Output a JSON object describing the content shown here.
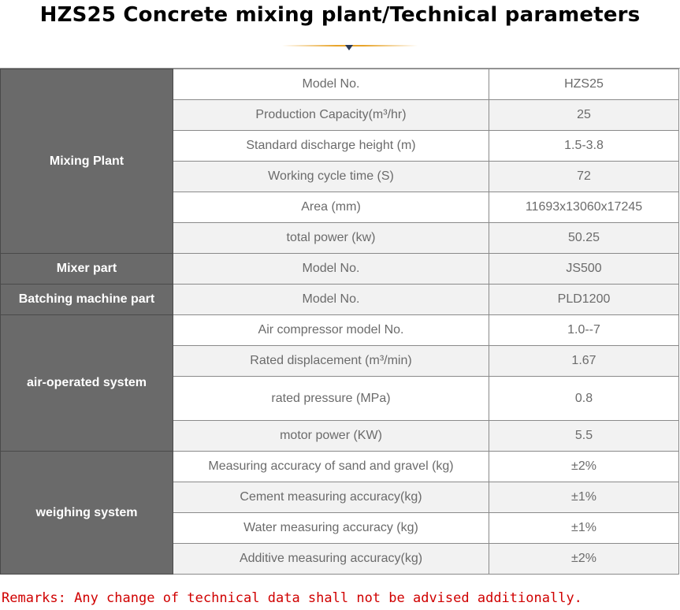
{
  "title": "HZS25 Concrete mixing plant/Technical parameters",
  "table": {
    "groups": [
      {
        "name": "Mixing Plant",
        "rows": [
          {
            "param": "Model No.",
            "value": "HZS25"
          },
          {
            "param": "Production Capacity(m³/hr)",
            "value": "25"
          },
          {
            "param": "Standard discharge height (m)",
            "value": "1.5-3.8"
          },
          {
            "param": "Working cycle time (S)",
            "value": "72"
          },
          {
            "param": "Area  (mm)",
            "value": "11693x13060x17245"
          },
          {
            "param": "total power  (kw)",
            "value": "50.25"
          }
        ]
      },
      {
        "name": "Mixer part",
        "rows": [
          {
            "param": "Model No.",
            "value": "JS500"
          }
        ]
      },
      {
        "name": "Batching machine part",
        "rows": [
          {
            "param": "Model No.",
            "value": "PLD1200"
          }
        ]
      },
      {
        "name": "air-operated system",
        "rows": [
          {
            "param": "Air compressor model No.",
            "value": "1.0--7"
          },
          {
            "param": "Rated displacement  (m³/min)",
            "value": "1.67"
          },
          {
            "param": "rated pressure  (MPa)",
            "value": "0.8"
          },
          {
            "param": "motor power  (KW)",
            "value": "5.5"
          }
        ]
      },
      {
        "name": "weighing system",
        "rows": [
          {
            "param": "Measuring accuracy of sand and gravel (kg)",
            "value": "±2%"
          },
          {
            "param": "Cement measuring accuracy(kg)",
            "value": "±1%"
          },
          {
            "param": "Water measuring accuracy (kg)",
            "value": "±1%"
          },
          {
            "param": "Additive measuring accuracy(kg)",
            "value": "±2%"
          }
        ]
      }
    ]
  },
  "remarks": "Remarks: Any change of technical data shall not be advised additionally."
}
